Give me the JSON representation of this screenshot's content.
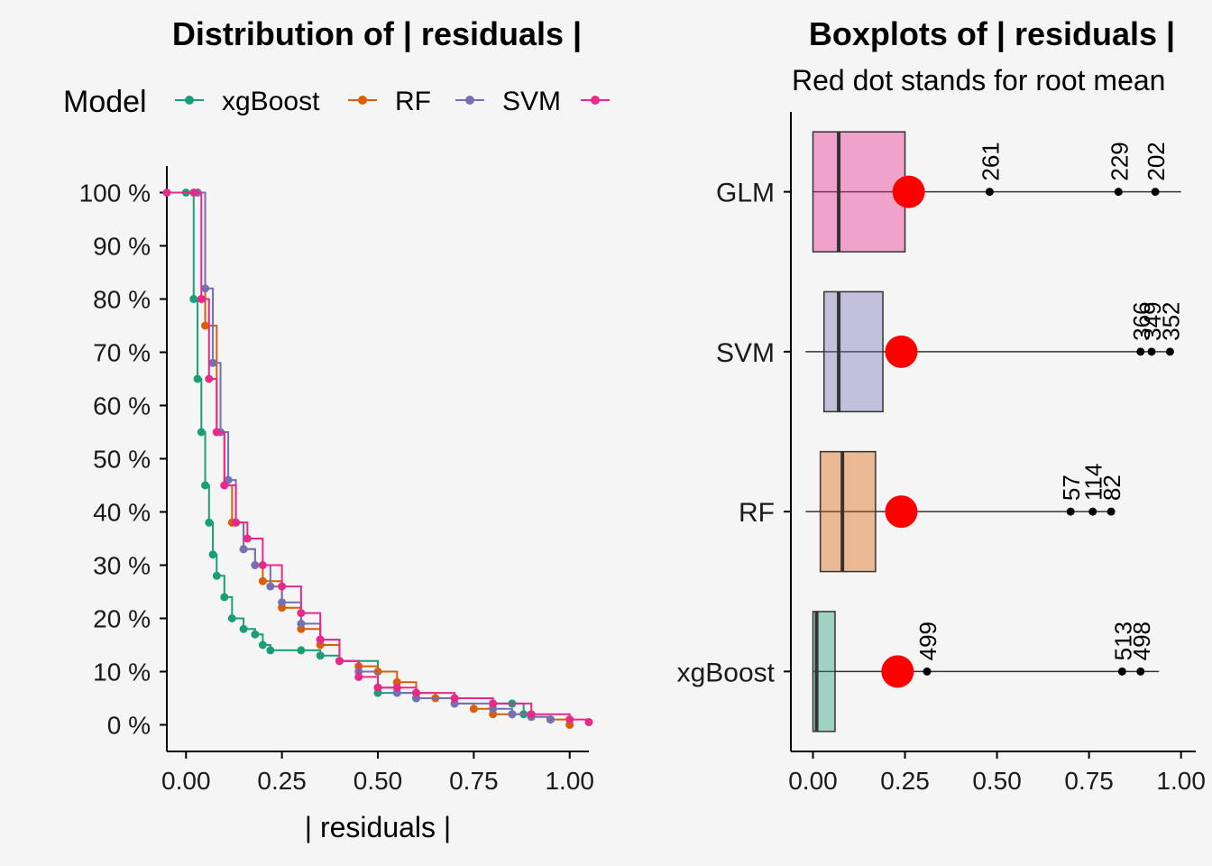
{
  "chart_data": [
    {
      "type": "line",
      "title": "Distribution of | residuals |",
      "xlabel": "| residuals |",
      "ylabel": "",
      "xlim": [
        -0.05,
        1.05
      ],
      "ylim": [
        -0.05,
        1.05
      ],
      "x_ticks": [
        0.0,
        0.25,
        0.5,
        0.75,
        1.0
      ],
      "x_tick_labels": [
        "0.00",
        "0.25",
        "0.50",
        "0.75",
        "1.00"
      ],
      "y_ticks": [
        0,
        0.1,
        0.2,
        0.3,
        0.4,
        0.5,
        0.6,
        0.7,
        0.8,
        0.9,
        1.0
      ],
      "y_tick_labels": [
        "0 %",
        "10 %",
        "20 %",
        "30 %",
        "40 %",
        "50 %",
        "60 %",
        "70 %",
        "80 %",
        "90 %",
        "100 %"
      ],
      "legend": {
        "title": "Model",
        "position": "top",
        "entries": [
          "xgBoost",
          "RF",
          "SVM",
          ""
        ]
      },
      "series": [
        {
          "name": "xgBoost",
          "color": "#1b9e77",
          "x": [
            0.0,
            0.02,
            0.03,
            0.04,
            0.05,
            0.06,
            0.07,
            0.08,
            0.1,
            0.12,
            0.15,
            0.18,
            0.2,
            0.22,
            0.3,
            0.35,
            0.4,
            0.5,
            0.6,
            0.7,
            0.8,
            0.85,
            0.88,
            0.9,
            0.95
          ],
          "y": [
            1.0,
            0.8,
            0.65,
            0.55,
            0.45,
            0.38,
            0.32,
            0.28,
            0.24,
            0.2,
            0.18,
            0.17,
            0.15,
            0.14,
            0.14,
            0.13,
            0.12,
            0.06,
            0.05,
            0.05,
            0.04,
            0.04,
            0.02,
            0.015,
            0.01
          ]
        },
        {
          "name": "RF",
          "color": "#d95f02",
          "x": [
            0.03,
            0.05,
            0.08,
            0.1,
            0.12,
            0.15,
            0.18,
            0.2,
            0.25,
            0.3,
            0.35,
            0.4,
            0.45,
            0.5,
            0.55,
            0.6,
            0.65,
            0.7,
            0.75,
            0.8,
            0.85,
            0.9,
            0.95,
            1.0
          ],
          "y": [
            1.0,
            0.75,
            0.55,
            0.45,
            0.38,
            0.33,
            0.3,
            0.27,
            0.22,
            0.18,
            0.15,
            0.12,
            0.11,
            0.1,
            0.08,
            0.06,
            0.05,
            0.04,
            0.03,
            0.02,
            0.02,
            0.015,
            0.01,
            0.0
          ]
        },
        {
          "name": "SVM",
          "color": "#7570b3",
          "x": [
            0.03,
            0.05,
            0.07,
            0.09,
            0.11,
            0.13,
            0.15,
            0.18,
            0.22,
            0.25,
            0.3,
            0.35,
            0.4,
            0.45,
            0.5,
            0.55,
            0.6,
            0.7,
            0.8,
            0.85,
            0.9,
            0.95
          ],
          "y": [
            1.0,
            0.82,
            0.68,
            0.55,
            0.46,
            0.38,
            0.33,
            0.3,
            0.26,
            0.23,
            0.19,
            0.16,
            0.12,
            0.1,
            0.07,
            0.06,
            0.05,
            0.04,
            0.03,
            0.02,
            0.015,
            0.01
          ]
        },
        {
          "name": "",
          "color": "#e7298a",
          "x": [
            -0.05,
            0.02,
            0.04,
            0.06,
            0.08,
            0.1,
            0.13,
            0.16,
            0.2,
            0.25,
            0.3,
            0.35,
            0.4,
            0.45,
            0.5,
            0.55,
            0.6,
            0.7,
            0.8,
            0.9,
            1.0,
            1.05
          ],
          "y": [
            1.0,
            1.0,
            0.8,
            0.65,
            0.55,
            0.45,
            0.38,
            0.35,
            0.3,
            0.26,
            0.21,
            0.16,
            0.12,
            0.09,
            0.07,
            0.07,
            0.06,
            0.05,
            0.04,
            0.02,
            0.01,
            0.005
          ]
        }
      ]
    },
    {
      "type": "box",
      "title": "Boxplots of | residuals |",
      "subtitle": "Red dot stands for root mean",
      "xlabel": "",
      "ylabel": "",
      "xlim": [
        -0.06,
        1.04
      ],
      "x_ticks": [
        0.0,
        0.25,
        0.5,
        0.75,
        1.0
      ],
      "x_tick_labels": [
        "0.00",
        "0.25",
        "0.50",
        "0.75",
        "1.00"
      ],
      "boxes": [
        {
          "name": "GLM",
          "color": "#e7298a",
          "whisker_low": 0.0,
          "q1": 0.0,
          "median": 0.07,
          "q3": 0.25,
          "whisker_high": 1.0,
          "root_mean": 0.26,
          "outliers": [
            {
              "label": "261",
              "value": 0.48
            },
            {
              "label": "229",
              "value": 0.83
            },
            {
              "label": "202",
              "value": 0.93
            }
          ]
        },
        {
          "name": "SVM",
          "color": "#7570b3",
          "whisker_low": -0.02,
          "q1": 0.03,
          "median": 0.07,
          "q3": 0.19,
          "whisker_high": 0.97,
          "root_mean": 0.24,
          "outliers": [
            {
              "label": "366",
              "value": 0.89
            },
            {
              "label": "349",
              "value": 0.92
            },
            {
              "label": "352",
              "value": 0.97
            }
          ]
        },
        {
          "name": "RF",
          "color": "#d95f02",
          "whisker_low": -0.02,
          "q1": 0.02,
          "median": 0.08,
          "q3": 0.17,
          "whisker_high": 0.82,
          "root_mean": 0.24,
          "outliers": [
            {
              "label": "57",
              "value": 0.7
            },
            {
              "label": "114",
              "value": 0.76
            },
            {
              "label": "82",
              "value": 0.81
            }
          ]
        },
        {
          "name": "xgBoost",
          "color": "#1b9e77",
          "whisker_low": 0.0,
          "q1": 0.0,
          "median": 0.01,
          "q3": 0.06,
          "whisker_high": 0.94,
          "root_mean": 0.23,
          "outliers": [
            {
              "label": "499",
              "value": 0.31
            },
            {
              "label": "513",
              "value": 0.84
            },
            {
              "label": "498",
              "value": 0.89
            }
          ]
        }
      ]
    }
  ]
}
